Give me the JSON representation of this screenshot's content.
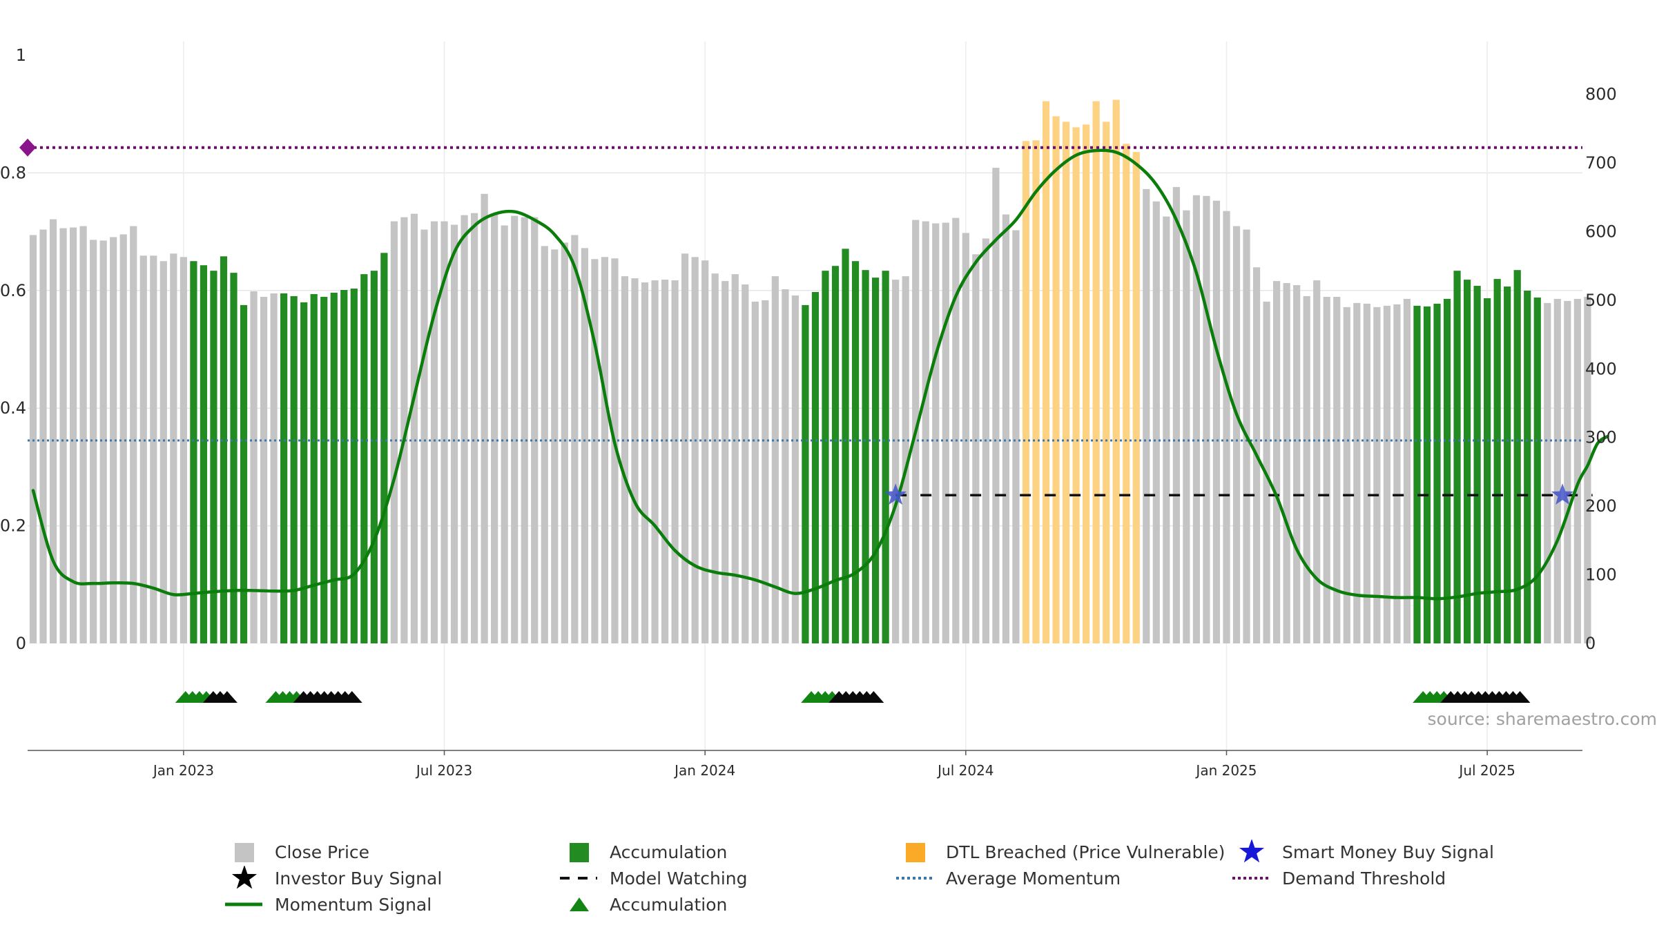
{
  "chart_data": {
    "type": "bar",
    "ylim_left": [
      0,
      1
    ],
    "left_ticks": [
      {
        "label": "0",
        "v": 0
      },
      {
        "label": "0.2",
        "v": 0.2
      },
      {
        "label": "0.4",
        "v": 0.4
      },
      {
        "label": "0.6",
        "v": 0.6
      },
      {
        "label": "0.8",
        "v": 0.8
      },
      {
        "label": "1",
        "v": 1
      }
    ],
    "ylim_right": [
      0,
      860
    ],
    "right_ticks": [
      {
        "label": "0",
        "v": 0
      },
      {
        "label": "100",
        "v": 100
      },
      {
        "label": "200",
        "v": 200
      },
      {
        "label": "300",
        "v": 300
      },
      {
        "label": "400",
        "v": 400
      },
      {
        "label": "500",
        "v": 500
      },
      {
        "label": "600",
        "v": 600
      },
      {
        "label": "700",
        "v": 700
      },
      {
        "label": "800",
        "v": 800
      }
    ],
    "x_ticks": [
      {
        "label": "Jan 2023",
        "week": 15
      },
      {
        "label": "Jul 2023",
        "week": 41
      },
      {
        "label": "Jan 2024",
        "week": 67
      },
      {
        "label": "Jul 2024",
        "week": 93
      },
      {
        "label": "Jan 2025",
        "week": 119
      },
      {
        "label": "Jul 2025",
        "week": 145
      }
    ],
    "bar_categories": [
      "grey",
      "green",
      "orange"
    ],
    "bar_colors": {
      "grey": "#c4c4c4",
      "green": "#228b22",
      "orange": "#fdd283"
    },
    "close_price": [
      {
        "seg": "grey",
        "values": [
          595,
          603,
          618,
          605,
          606,
          608,
          588,
          587,
          592,
          596,
          608,
          565,
          565,
          557,
          568,
          563
        ]
      },
      {
        "seg": "green",
        "values": [
          557,
          551,
          543,
          564,
          540,
          493
        ]
      },
      {
        "seg": "grey",
        "values": [
          513,
          505,
          510
        ]
      },
      {
        "seg": "green",
        "values": [
          510,
          506,
          497,
          509,
          505,
          511,
          515,
          517,
          538,
          543,
          569
        ]
      },
      {
        "seg": "grey",
        "values": [
          615,
          621,
          626,
          603,
          615,
          615,
          610,
          624,
          627,
          655,
          626,
          609,
          623,
          621,
          621,
          579,
          574,
          584,
          595,
          576,
          560,
          563,
          561,
          535,
          532,
          526,
          529,
          530,
          529,
          568,
          563,
          558,
          539,
          528,
          538,
          523,
          498,
          500,
          535,
          516,
          507
        ]
      },
      {
        "seg": "green",
        "values": [
          493,
          512,
          543,
          550,
          575,
          557,
          544,
          533,
          543
        ]
      },
      {
        "seg": "grey",
        "values": [
          530,
          535,
          617,
          615,
          612,
          613,
          620,
          598,
          567,
          590,
          693,
          625,
          602
        ]
      },
      {
        "seg": "orange",
        "values": [
          732,
          733,
          790,
          768,
          760,
          752,
          756,
          790,
          760,
          792,
          728,
          716
        ]
      },
      {
        "seg": "grey",
        "values": [
          662,
          644,
          622,
          665,
          631,
          653,
          652,
          645,
          630,
          608,
          603,
          548,
          498,
          528,
          525,
          522,
          506,
          529,
          505,
          505,
          490,
          496,
          495,
          490,
          492,
          494,
          502
        ]
      },
      {
        "seg": "green",
        "values": [
          492,
          491,
          495,
          502,
          543,
          530,
          521,
          503,
          531,
          520,
          544,
          514,
          504
        ]
      },
      {
        "seg": "grey",
        "values": [
          496,
          502,
          499,
          502,
          505
        ]
      }
    ],
    "momentum_signal": [
      [
        0,
        0.26
      ],
      [
        2,
        0.14
      ],
      [
        4,
        0.105
      ],
      [
        6,
        0.102
      ],
      [
        8,
        0.103
      ],
      [
        10,
        0.102
      ],
      [
        12,
        0.094
      ],
      [
        14,
        0.083
      ],
      [
        16,
        0.085
      ],
      [
        18,
        0.088
      ],
      [
        20,
        0.09
      ],
      [
        22,
        0.09
      ],
      [
        24,
        0.089
      ],
      [
        26,
        0.09
      ],
      [
        28,
        0.099
      ],
      [
        30,
        0.108
      ],
      [
        32,
        0.118
      ],
      [
        34,
        0.175
      ],
      [
        36,
        0.28
      ],
      [
        38,
        0.42
      ],
      [
        40,
        0.56
      ],
      [
        42,
        0.665
      ],
      [
        44,
        0.71
      ],
      [
        46,
        0.73
      ],
      [
        48,
        0.734
      ],
      [
        50,
        0.72
      ],
      [
        52,
        0.695
      ],
      [
        54,
        0.64
      ],
      [
        56,
        0.51
      ],
      [
        58,
        0.34
      ],
      [
        60,
        0.24
      ],
      [
        62,
        0.2
      ],
      [
        64,
        0.158
      ],
      [
        66,
        0.132
      ],
      [
        68,
        0.121
      ],
      [
        70,
        0.116
      ],
      [
        72,
        0.108
      ],
      [
        74,
        0.096
      ],
      [
        76,
        0.085
      ],
      [
        78,
        0.093
      ],
      [
        80,
        0.107
      ],
      [
        82,
        0.12
      ],
      [
        84,
        0.155
      ],
      [
        86,
        0.235
      ],
      [
        88,
        0.36
      ],
      [
        90,
        0.49
      ],
      [
        92,
        0.59
      ],
      [
        94,
        0.648
      ],
      [
        96,
        0.686
      ],
      [
        98,
        0.72
      ],
      [
        100,
        0.768
      ],
      [
        102,
        0.805
      ],
      [
        104,
        0.83
      ],
      [
        106,
        0.838
      ],
      [
        108,
        0.835
      ],
      [
        110,
        0.815
      ],
      [
        112,
        0.78
      ],
      [
        114,
        0.72
      ],
      [
        116,
        0.63
      ],
      [
        118,
        0.5
      ],
      [
        120,
        0.39
      ],
      [
        122,
        0.32
      ],
      [
        124,
        0.25
      ],
      [
        126,
        0.16
      ],
      [
        128,
        0.11
      ],
      [
        130,
        0.09
      ],
      [
        132,
        0.082
      ],
      [
        134,
        0.08
      ],
      [
        136,
        0.078
      ],
      [
        138,
        0.078
      ],
      [
        140,
        0.076
      ],
      [
        142,
        0.079
      ],
      [
        144,
        0.085
      ],
      [
        146,
        0.088
      ],
      [
        148,
        0.092
      ],
      [
        150,
        0.115
      ],
      [
        152,
        0.175
      ],
      [
        154,
        0.27
      ],
      [
        155,
        0.302
      ],
      [
        156,
        0.34
      ],
      [
        157,
        0.352
      ]
    ],
    "average_momentum": 0.345,
    "demand_threshold": 0.843,
    "model_watching": {
      "level": 0.252,
      "from_week": 86,
      "to_week": 155.5
    },
    "smart_money_buy_signals": [
      {
        "week": 86,
        "value": 0.252
      },
      {
        "week": 152.5,
        "value": 0.252
      }
    ],
    "signal_triangles": [
      {
        "start": 15.2,
        "green": 4,
        "black": 3
      },
      {
        "start": 24.2,
        "green": 4,
        "black": 8
      },
      {
        "start": 77.6,
        "green": 4,
        "black": 6
      },
      {
        "start": 138.6,
        "green": 4,
        "black": 11
      }
    ],
    "legend": [
      {
        "label": "Close Price",
        "symbol": "grey-square"
      },
      {
        "label": "Accumulation",
        "symbol": "green-square"
      },
      {
        "label": "DTL Breached (Price Vulnerable)",
        "symbol": "orange-square"
      },
      {
        "label": "Smart Money Buy Signal",
        "symbol": "blue-star"
      },
      {
        "label": "Investor Buy Signal",
        "symbol": "black-star"
      },
      {
        "label": "Model Watching",
        "symbol": "black-dash"
      },
      {
        "label": "Average Momentum",
        "symbol": "blue-dotted-line"
      },
      {
        "label": "Demand Threshold",
        "symbol": "purple-dotted-line"
      },
      {
        "label": "Momentum Signal",
        "symbol": "green-line"
      },
      {
        "label": "Accumulation",
        "symbol": "green-triangle"
      }
    ],
    "colors": {
      "momentum": "#0a7d0a",
      "average_momentum": "#3d76a8",
      "demand_threshold": "#6b0f6b",
      "model_watching": "#111111",
      "smart_money_star": "#4455cc",
      "triangle_green": "#128512",
      "triangle_black": "#0a0a0a"
    }
  },
  "source_text": "source: sharemaestro.com"
}
